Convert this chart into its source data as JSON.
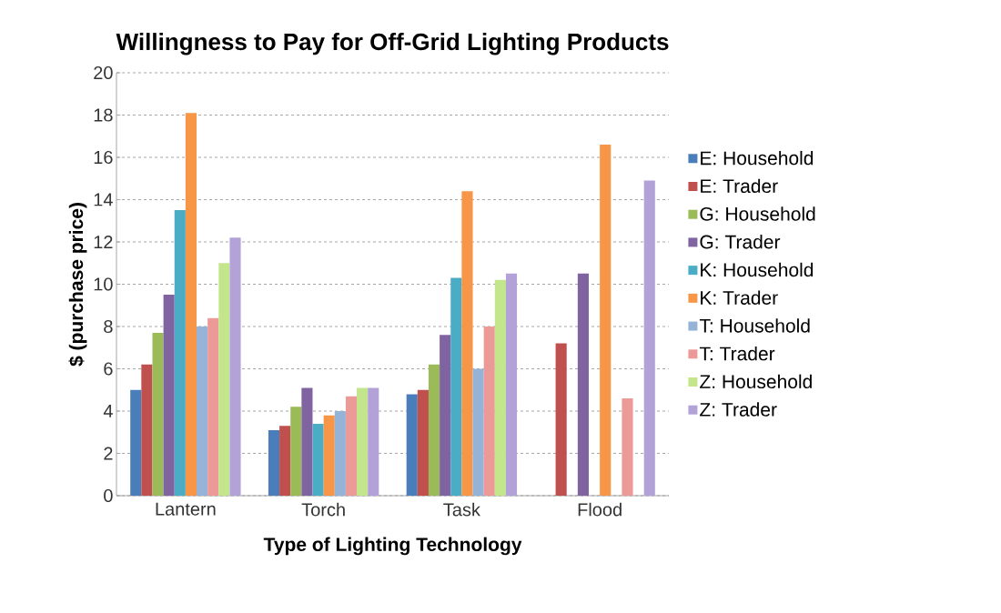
{
  "chart_data": {
    "type": "bar",
    "title": "Willingness to Pay for Off-Grid Lighting Products",
    "xlabel": "Type of Lighting Technology",
    "ylabel": "$ (purchase price)",
    "categories": [
      "Lantern",
      "Torch",
      "Task",
      "Flood"
    ],
    "series": [
      {
        "name": "E: Household",
        "color": "#4a7ebb",
        "values": [
          5.0,
          3.1,
          4.8,
          null
        ]
      },
      {
        "name": "E: Trader",
        "color": "#c0504d",
        "values": [
          6.2,
          3.3,
          5.0,
          7.2
        ]
      },
      {
        "name": "G: Household",
        "color": "#9bbb59",
        "values": [
          7.7,
          4.2,
          6.2,
          null
        ]
      },
      {
        "name": "G: Trader",
        "color": "#8064a2",
        "values": [
          9.5,
          5.1,
          7.6,
          10.5
        ]
      },
      {
        "name": "K: Household",
        "color": "#4bacc6",
        "values": [
          13.5,
          3.4,
          10.3,
          null
        ]
      },
      {
        "name": "K: Trader",
        "color": "#f79646",
        "values": [
          18.1,
          3.8,
          14.4,
          16.6
        ]
      },
      {
        "name": "T: Household",
        "color": "#95b3d7",
        "values": [
          8.0,
          4.0,
          6.0,
          null
        ]
      },
      {
        "name": "T: Trader",
        "color": "#ec9a98",
        "values": [
          8.4,
          4.7,
          8.0,
          4.6
        ]
      },
      {
        "name": "Z: Household",
        "color": "#c3e58b",
        "values": [
          11.0,
          5.1,
          10.2,
          null
        ]
      },
      {
        "name": "Z: Trader",
        "color": "#b3a2d8",
        "values": [
          12.2,
          5.1,
          10.5,
          14.9
        ]
      }
    ],
    "ylim": [
      0,
      20
    ],
    "yticks": [
      0,
      2,
      4,
      6,
      8,
      10,
      12,
      14,
      16,
      18,
      20
    ],
    "grid": "y",
    "legend": "right"
  }
}
